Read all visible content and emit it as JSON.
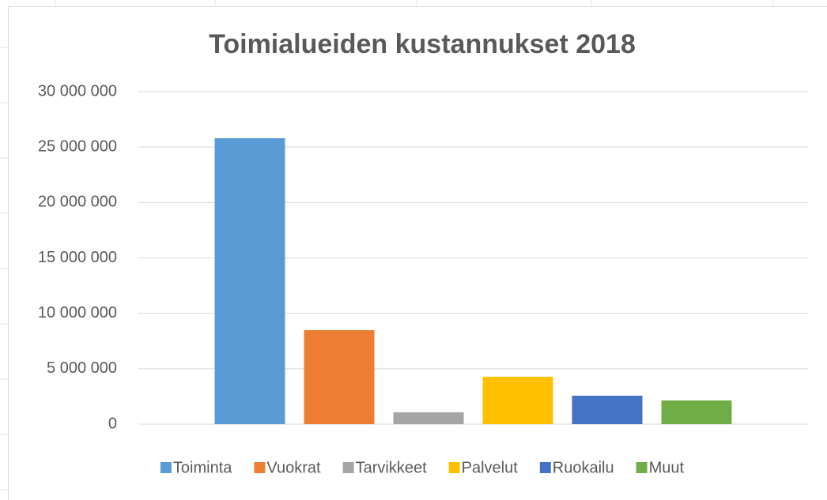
{
  "chart_data": {
    "type": "bar",
    "title": "Toimialueiden kustannukset 2018",
    "categories": [
      null
    ],
    "series": [
      {
        "name": "Toiminta",
        "color": "#5b9bd5",
        "values": [
          25800000
        ]
      },
      {
        "name": "Vuokrat",
        "color": "#ed7d31",
        "values": [
          8480000
        ]
      },
      {
        "name": "Tarvikkeet",
        "color": "#a5a5a5",
        "values": [
          1070000
        ]
      },
      {
        "name": "Palvelut",
        "color": "#ffc000",
        "values": [
          4280000
        ]
      },
      {
        "name": "Ruokailu",
        "color": "#4472c4",
        "values": [
          2570000
        ]
      },
      {
        "name": "Muut",
        "color": "#70ad47",
        "values": [
          2140000
        ]
      }
    ],
    "ylim": [
      0,
      30000000
    ],
    "yticks": [
      {
        "value": 0,
        "label": "0"
      },
      {
        "value": 5000000,
        "label": "5 000 000"
      },
      {
        "value": 10000000,
        "label": "10 000 000"
      },
      {
        "value": 15000000,
        "label": "15 000 000"
      },
      {
        "value": 20000000,
        "label": "20 000 000"
      },
      {
        "value": 25000000,
        "label": "25 000 000"
      },
      {
        "value": 30000000,
        "label": "30 000 000"
      }
    ],
    "grid": true,
    "legend": "bottom"
  }
}
